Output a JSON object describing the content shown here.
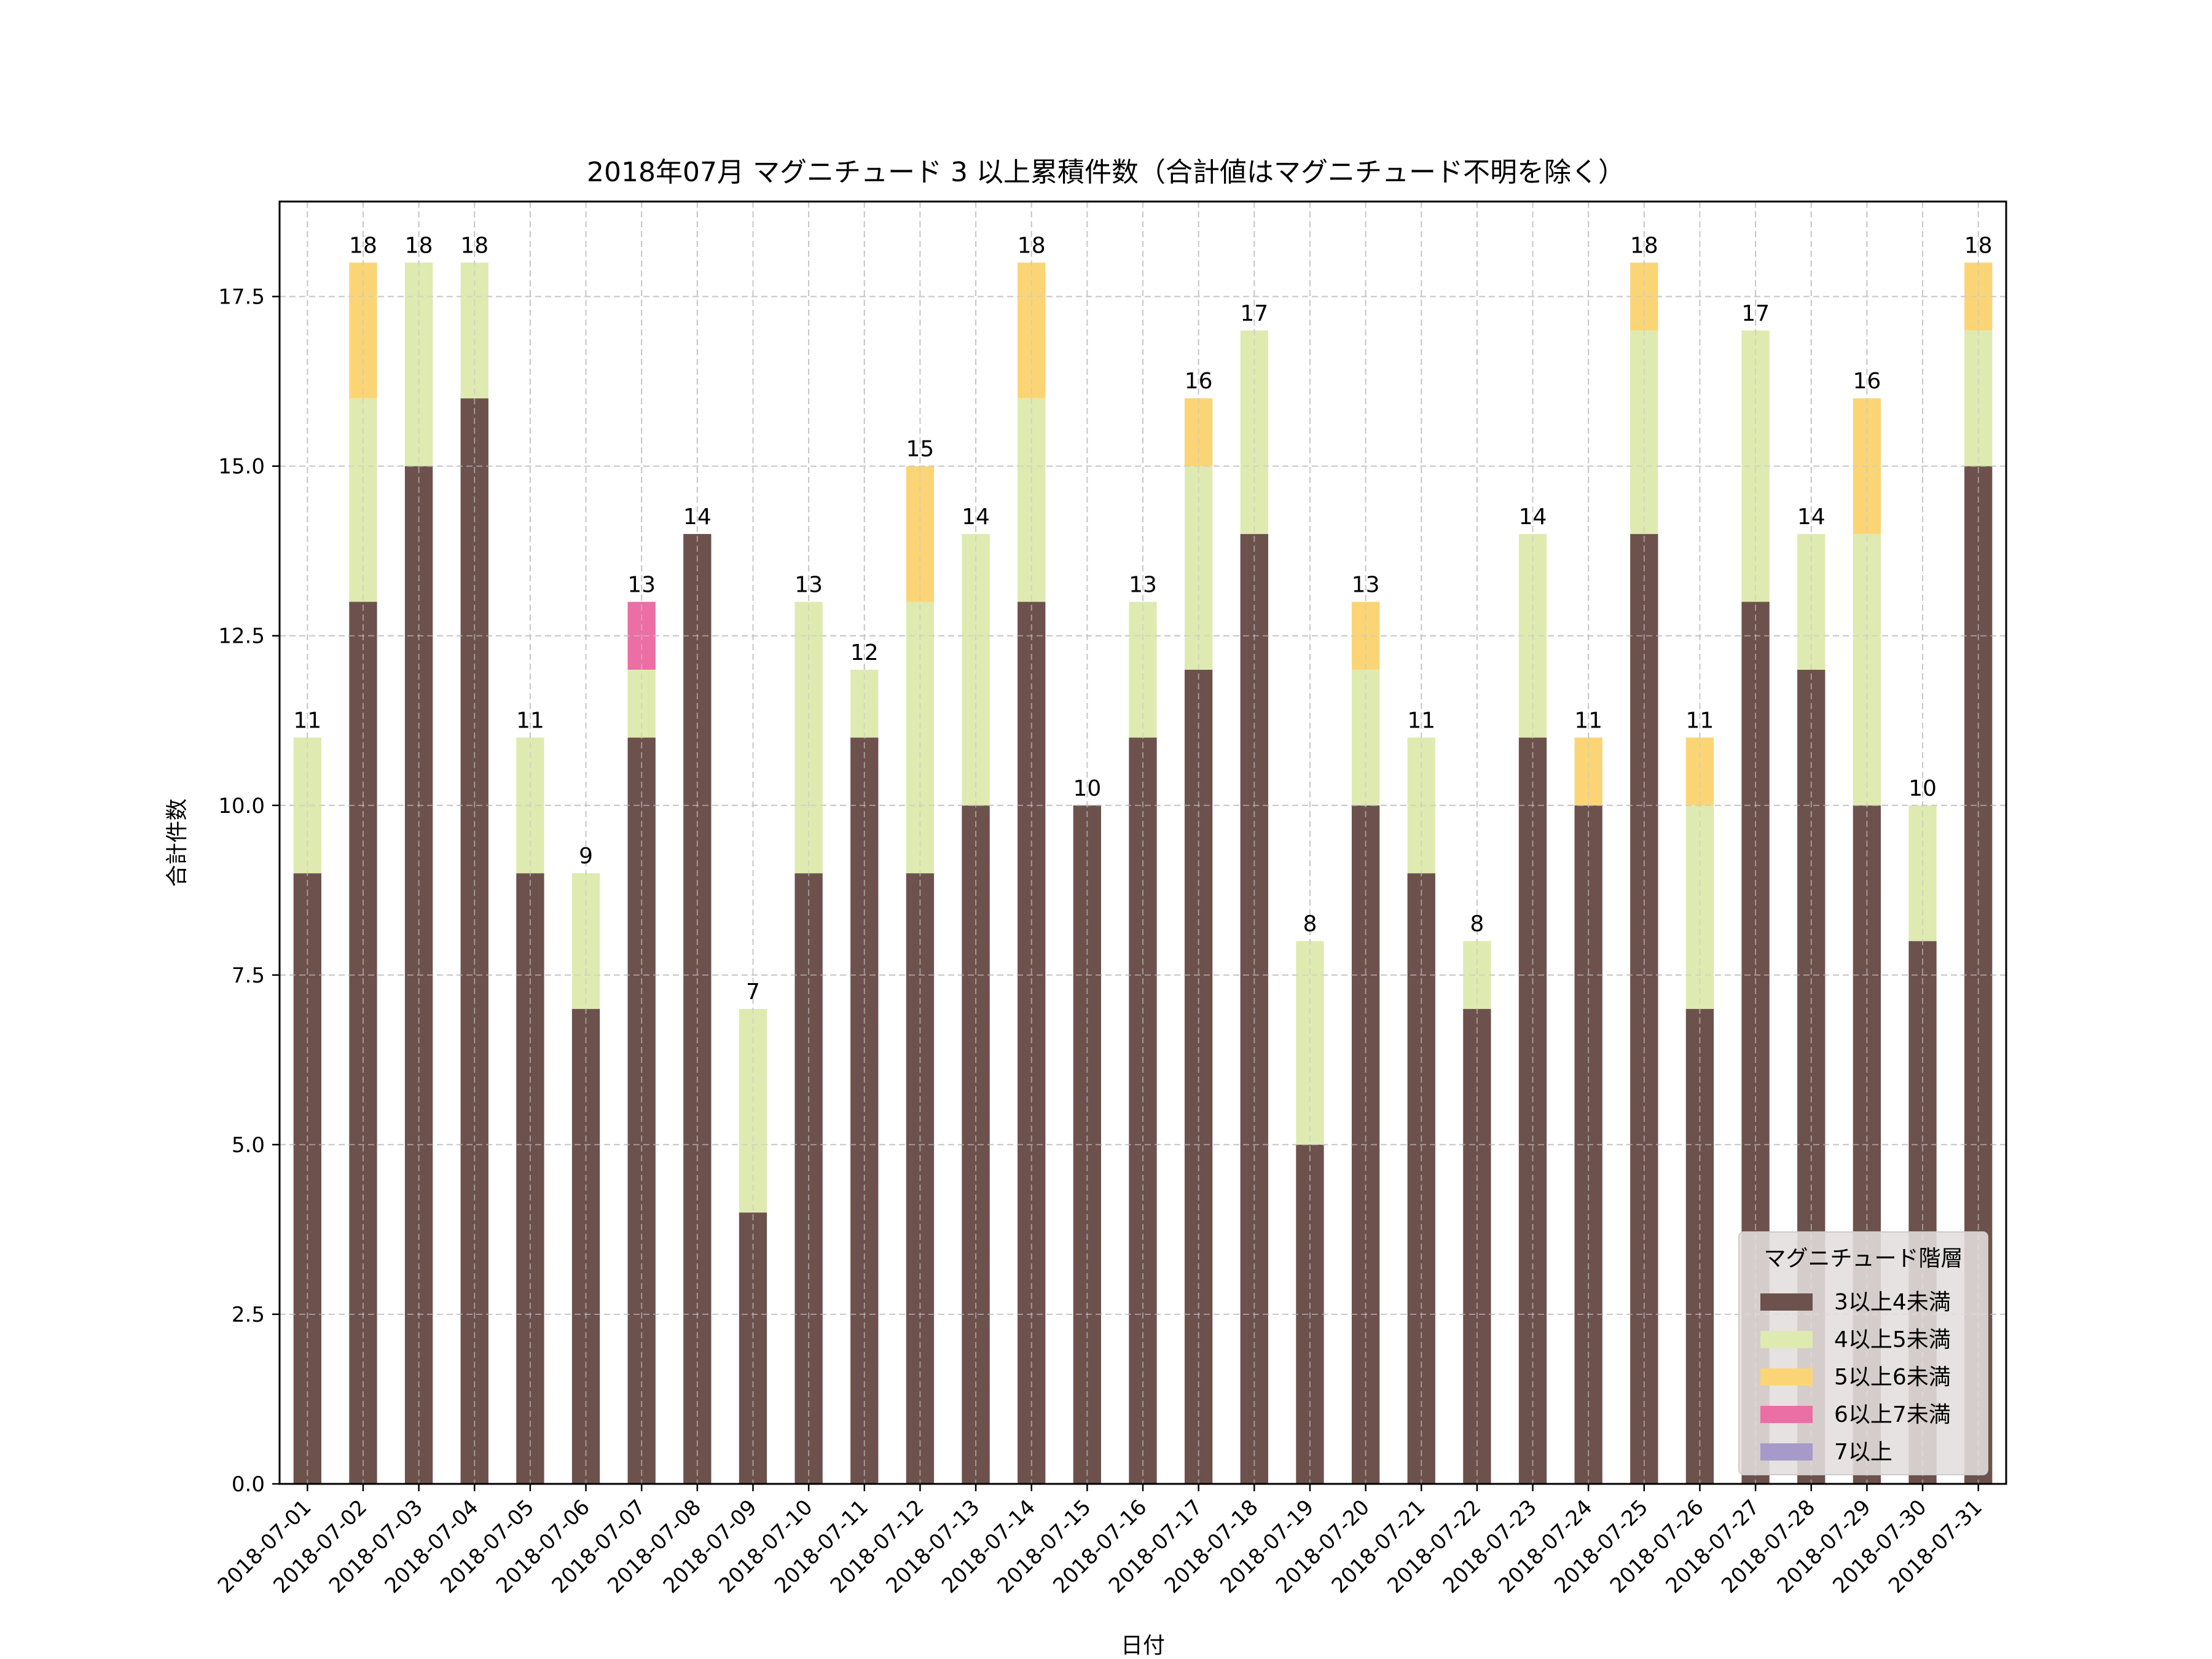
{
  "chart_data": {
    "type": "bar",
    "stacked": true,
    "title": "2018年07月 マグニチュード 3 以上累積件数（合計値はマグニチュード不明を除く）",
    "xlabel": "日付",
    "ylabel": "合計件数",
    "ylim": [
      0,
      18.9
    ],
    "yticks": [
      "0.0",
      "2.5",
      "5.0",
      "7.5",
      "10.0",
      "12.5",
      "15.0",
      "17.5"
    ],
    "grid": true,
    "legend": {
      "title": "マグニチュード階層",
      "placement": "lower-right"
    },
    "categories": [
      "2018-07-01",
      "2018-07-02",
      "2018-07-03",
      "2018-07-04",
      "2018-07-05",
      "2018-07-06",
      "2018-07-07",
      "2018-07-08",
      "2018-07-09",
      "2018-07-10",
      "2018-07-11",
      "2018-07-12",
      "2018-07-13",
      "2018-07-14",
      "2018-07-15",
      "2018-07-16",
      "2018-07-17",
      "2018-07-18",
      "2018-07-19",
      "2018-07-20",
      "2018-07-21",
      "2018-07-22",
      "2018-07-23",
      "2018-07-24",
      "2018-07-25",
      "2018-07-26",
      "2018-07-27",
      "2018-07-28",
      "2018-07-29",
      "2018-07-30",
      "2018-07-31"
    ],
    "series": [
      {
        "name": "3以上4未満",
        "color": "#6d514d",
        "values": [
          9,
          13,
          15,
          16,
          9,
          7,
          11,
          14,
          4,
          9,
          11,
          9,
          10,
          13,
          10,
          11,
          12,
          14,
          5,
          10,
          9,
          7,
          11,
          10,
          14,
          7,
          13,
          12,
          10,
          8,
          15
        ]
      },
      {
        "name": "4以上5未満",
        "color": "#dfeab0",
        "values": [
          2,
          3,
          3,
          2,
          2,
          2,
          1,
          0,
          3,
          4,
          1,
          4,
          4,
          3,
          0,
          2,
          3,
          3,
          3,
          2,
          2,
          1,
          3,
          0,
          3,
          3,
          4,
          2,
          4,
          2,
          2
        ]
      },
      {
        "name": "5以上6未満",
        "color": "#fbd575",
        "values": [
          0,
          2,
          0,
          0,
          0,
          0,
          0,
          0,
          0,
          0,
          0,
          2,
          0,
          2,
          0,
          0,
          1,
          0,
          0,
          1,
          0,
          0,
          0,
          1,
          1,
          1,
          0,
          0,
          2,
          0,
          1
        ]
      },
      {
        "name": "6以上7未満",
        "color": "#eb6ea5",
        "values": [
          0,
          0,
          0,
          0,
          0,
          0,
          1,
          0,
          0,
          0,
          0,
          0,
          0,
          0,
          0,
          0,
          0,
          0,
          0,
          0,
          0,
          0,
          0,
          0,
          0,
          0,
          0,
          0,
          0,
          0,
          0
        ]
      },
      {
        "name": "7以上",
        "color": "#a59aca",
        "values": [
          0,
          0,
          0,
          0,
          0,
          0,
          0,
          0,
          0,
          0,
          0,
          0,
          0,
          0,
          0,
          0,
          0,
          0,
          0,
          0,
          0,
          0,
          0,
          0,
          0,
          0,
          0,
          0,
          0,
          0,
          0
        ]
      }
    ],
    "totals": [
      11,
      18,
      18,
      18,
      11,
      9,
      13,
      14,
      7,
      13,
      12,
      15,
      14,
      18,
      10,
      13,
      16,
      17,
      8,
      13,
      11,
      8,
      14,
      11,
      18,
      11,
      17,
      14,
      16,
      10,
      18
    ]
  }
}
